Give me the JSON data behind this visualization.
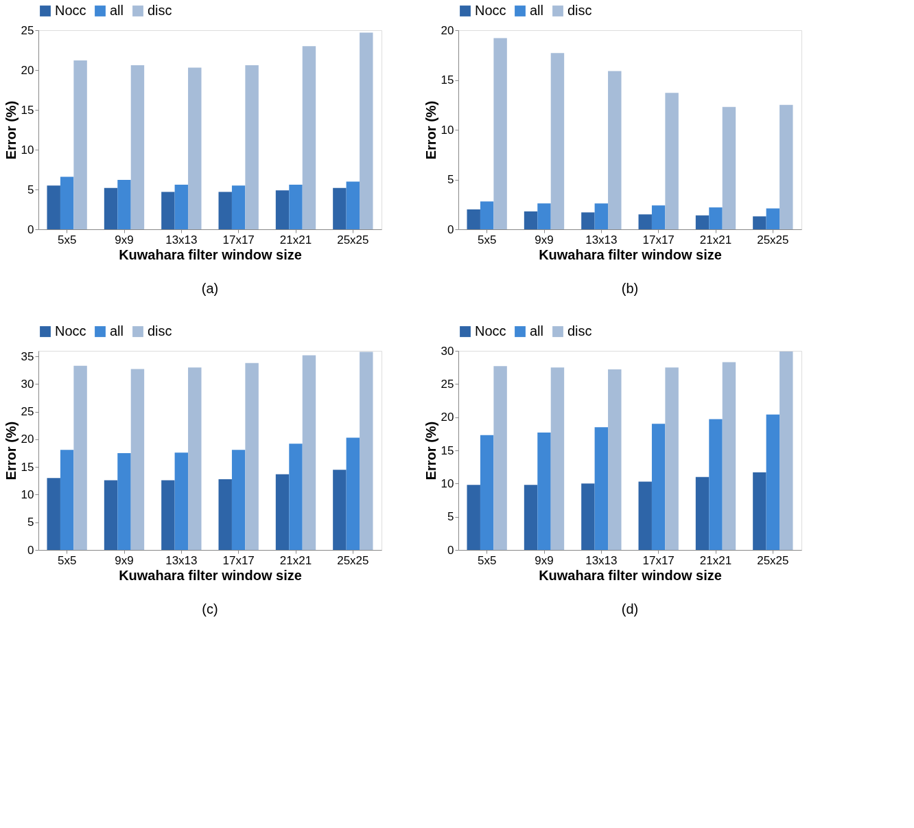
{
  "chart_data": [
    {
      "type": "bar",
      "categories": [
        "5x5",
        "9x9",
        "13x13",
        "17x17",
        "21x21",
        "25x25"
      ],
      "xlabel": "Kuwahara filter window size",
      "ylabel": "Error (%)",
      "ylim": [
        0,
        25
      ],
      "yticks": [
        0,
        5,
        10,
        15,
        20,
        25
      ],
      "legend": "top",
      "annotations": [
        "(a)"
      ],
      "series": [
        {
          "name": "Nocc",
          "color": "#2e65a8",
          "values": [
            5.5,
            5.2,
            4.7,
            4.7,
            4.9,
            5.2
          ]
        },
        {
          "name": "all",
          "color": "#3f88d6",
          "values": [
            6.6,
            6.2,
            5.6,
            5.5,
            5.6,
            6.0
          ]
        },
        {
          "name": "disc",
          "color": "#a6bcd8",
          "values": [
            21.2,
            20.6,
            20.3,
            20.6,
            23.0,
            24.7
          ]
        }
      ]
    },
    {
      "type": "bar",
      "categories": [
        "5x5",
        "9x9",
        "13x13",
        "17x17",
        "21x21",
        "25x25"
      ],
      "xlabel": "Kuwahara filter window size",
      "ylabel": "Error (%)",
      "ylim": [
        0,
        20
      ],
      "yticks": [
        0,
        5,
        10,
        15,
        20
      ],
      "legend": "top",
      "annotations": [
        "(b)"
      ],
      "series": [
        {
          "name": "Nocc",
          "color": "#2e65a8",
          "values": [
            2.0,
            1.8,
            1.7,
            1.5,
            1.4,
            1.3
          ]
        },
        {
          "name": "all",
          "color": "#3f88d6",
          "values": [
            2.8,
            2.6,
            2.6,
            2.4,
            2.2,
            2.1
          ]
        },
        {
          "name": "disc",
          "color": "#a6bcd8",
          "values": [
            19.2,
            17.7,
            15.9,
            13.7,
            12.3,
            12.5
          ]
        }
      ]
    },
    {
      "type": "bar",
      "categories": [
        "5x5",
        "9x9",
        "13x13",
        "17x17",
        "21x21",
        "25x25"
      ],
      "xlabel": "Kuwahara filter window size",
      "ylabel": "Error (%)",
      "ylim": [
        0,
        36
      ],
      "yticks": [
        0,
        5,
        10,
        15,
        20,
        25,
        30,
        35
      ],
      "legend": "top",
      "annotations": [
        "(c)"
      ],
      "series": [
        {
          "name": "Nocc",
          "color": "#2e65a8",
          "values": [
            13.0,
            12.6,
            12.6,
            12.8,
            13.7,
            14.5
          ]
        },
        {
          "name": "all",
          "color": "#3f88d6",
          "values": [
            18.1,
            17.5,
            17.6,
            18.1,
            19.2,
            20.3
          ]
        },
        {
          "name": "disc",
          "color": "#a6bcd8",
          "values": [
            33.3,
            32.7,
            33.0,
            33.8,
            35.2,
            35.8
          ]
        }
      ]
    },
    {
      "type": "bar",
      "categories": [
        "5x5",
        "9x9",
        "13x13",
        "17x17",
        "21x21",
        "25x25"
      ],
      "xlabel": "Kuwahara filter window size",
      "ylabel": "Error (%)",
      "ylim": [
        0,
        30
      ],
      "yticks": [
        0,
        5,
        10,
        15,
        20,
        25,
        30
      ],
      "legend": "top",
      "annotations": [
        "(d)"
      ],
      "series": [
        {
          "name": "Nocc",
          "color": "#2e65a8",
          "values": [
            9.8,
            9.8,
            10.0,
            10.3,
            11.0,
            11.7
          ]
        },
        {
          "name": "all",
          "color": "#3f88d6",
          "values": [
            17.3,
            17.7,
            18.5,
            19.0,
            19.7,
            20.4
          ]
        },
        {
          "name": "disc",
          "color": "#a6bcd8",
          "values": [
            27.7,
            27.5,
            27.2,
            27.5,
            28.3,
            29.9
          ]
        }
      ]
    }
  ]
}
